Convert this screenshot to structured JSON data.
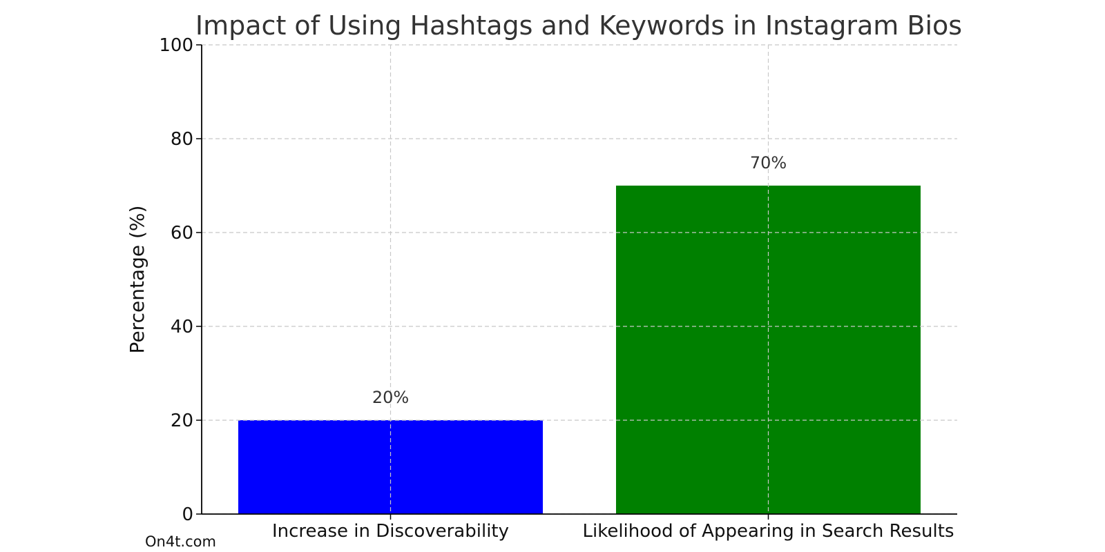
{
  "watermark": "On4t.com",
  "chart_data": {
    "type": "bar",
    "title": "Impact of Using Hashtags and Keywords in Instagram Bios",
    "xlabel": "",
    "ylabel": "Percentage (%)",
    "ylim": [
      0,
      100
    ],
    "yticks": [
      "0",
      "20",
      "40",
      "60",
      "80",
      "100"
    ],
    "categories": [
      "Increase in Discoverability",
      "Likelihood of Appearing in Search Results"
    ],
    "values": [
      20,
      70
    ],
    "value_labels": [
      "20%",
      "70%"
    ],
    "colors": [
      "#0000ff",
      "#008000"
    ],
    "grid": true
  }
}
